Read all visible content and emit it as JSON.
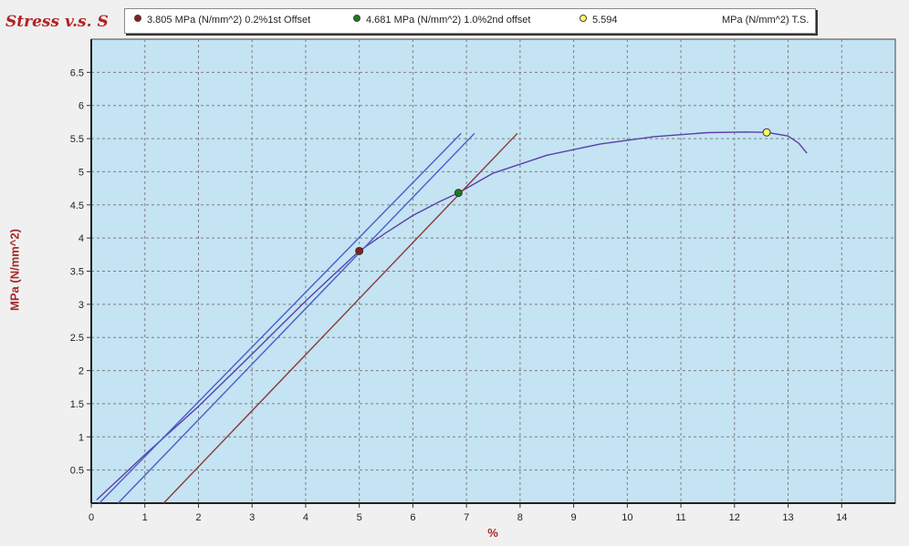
{
  "chart_data": {
    "type": "line",
    "title": "Stress v.s. S",
    "xlabel": "%",
    "ylabel": "MPa (N/mm^2)",
    "xlim": [
      0,
      15
    ],
    "ylim": [
      0,
      7
    ],
    "x_ticks": [
      "0",
      "1",
      "2",
      "3",
      "4",
      "5",
      "6",
      "7",
      "8",
      "9",
      "10",
      "11",
      "12",
      "13",
      "14"
    ],
    "y_ticks": [
      "0.5",
      "1",
      "1.5",
      "2",
      "2.5",
      "3",
      "3.5",
      "4",
      "4.5",
      "5",
      "5.5",
      "6",
      "6.5"
    ],
    "grid": true,
    "colors": {
      "plot_bg": "#c4e3f3",
      "grid": "#7f7f7f",
      "curve": "#5a3fa8",
      "offset_1": "#4a5dcc",
      "offset_2": "#4a5dcc",
      "offset_3": "#8b3a3a"
    },
    "series": [
      {
        "id": "curve",
        "x": [
          0.1,
          1,
          2,
          3,
          4,
          4.5,
          5,
          5.5,
          6,
          6.5,
          6.85,
          7.5,
          8.5,
          9.5,
          10.5,
          11.5,
          12.2,
          12.6,
          13,
          13.2,
          13.35
        ],
        "y": [
          0.05,
          0.73,
          1.46,
          2.25,
          3.05,
          3.43,
          3.805,
          4.08,
          4.34,
          4.55,
          4.681,
          4.98,
          5.25,
          5.42,
          5.53,
          5.59,
          5.6,
          5.594,
          5.54,
          5.43,
          5.28
        ]
      },
      {
        "id": "offset_1",
        "x": [
          0.15,
          6.9
        ],
        "y": [
          0.0,
          5.58
        ]
      },
      {
        "id": "offset_2",
        "x": [
          0.5,
          7.15
        ],
        "y": [
          0.0,
          5.58
        ]
      },
      {
        "id": "offset_3",
        "x": [
          1.35,
          7.95
        ],
        "y": [
          0.0,
          5.58
        ]
      }
    ],
    "markers": [
      {
        "x": 5.0,
        "y": 3.805,
        "color": "#8b1a1a",
        "label": "3.805 MPa (N/mm^2) 0.2%1st Offset"
      },
      {
        "x": 6.85,
        "y": 4.681,
        "color": "#1f7a1f",
        "label": "4.681 MPa (N/mm^2) 1.0%2nd offset"
      },
      {
        "x": 12.6,
        "y": 5.594,
        "color": "#ffff66",
        "label": "5.594"
      }
    ],
    "legend_tail": "MPa (N/mm^2) T.S.",
    "legend_position": "top"
  }
}
